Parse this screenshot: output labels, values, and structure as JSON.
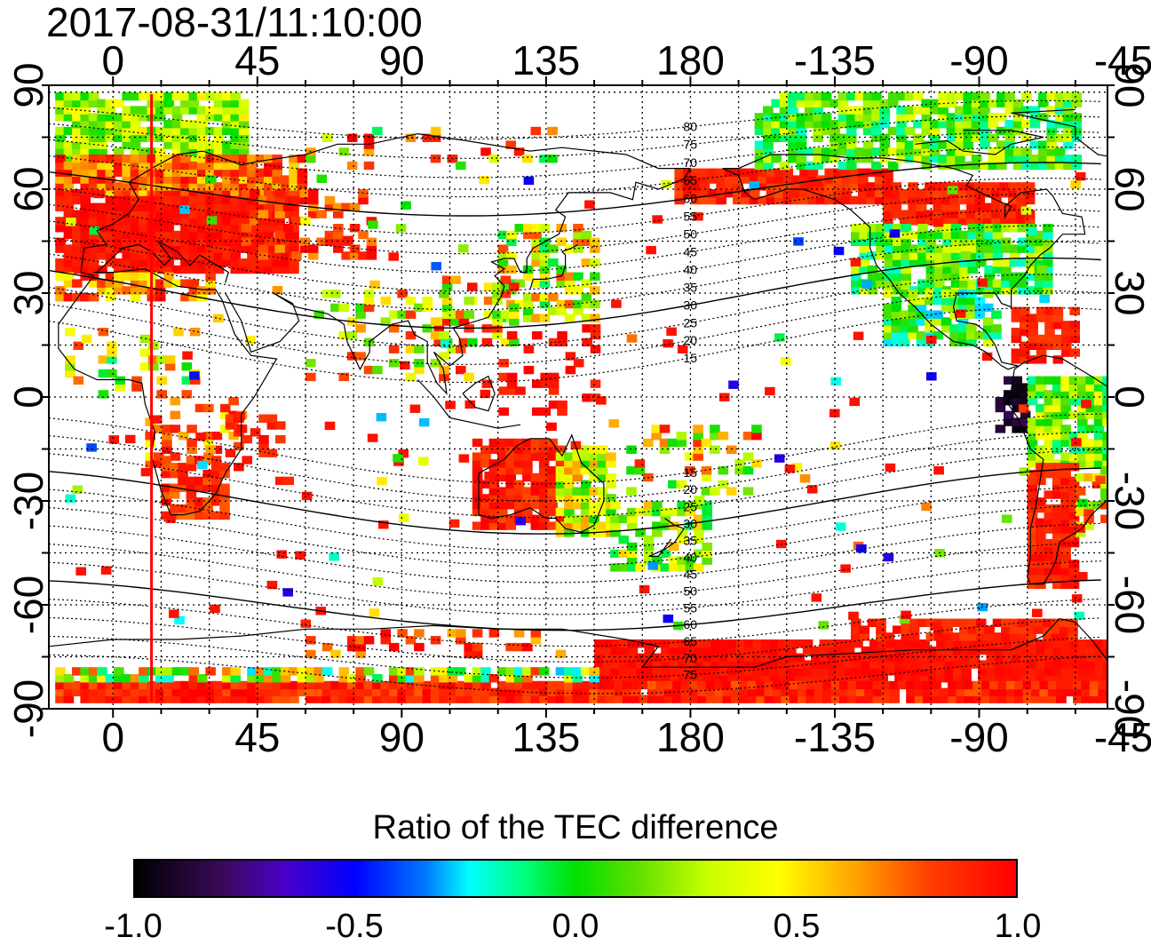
{
  "timestamp": "2017-08-31/11:10:00",
  "map": {
    "x_ticks": [
      "0",
      "45",
      "90",
      "135",
      "180",
      "-135",
      "-90",
      "-45"
    ],
    "y_ticks": [
      "90",
      "60",
      "30",
      "0",
      "-30",
      "-60",
      "-90"
    ],
    "lon_range": [
      -20,
      310
    ],
    "lat_range": [
      -90,
      90
    ],
    "marker_lon": 12,
    "marker_color": "#ff0000",
    "mlat_labels_north": [
      "80",
      "75",
      "70",
      "65",
      "60",
      "55",
      "50",
      "45",
      "40",
      "35",
      "30",
      "25",
      "20",
      "15"
    ],
    "mlat_labels_south": [
      "15",
      "20",
      "25",
      "30",
      "35",
      "40",
      "45",
      "50",
      "55",
      "60",
      "65",
      "70",
      "75"
    ]
  },
  "colorbar": {
    "title": "Ratio of the TEC difference",
    "ticks": [
      "-1.0",
      "-0.5",
      "0.0",
      "0.5",
      "1.0"
    ],
    "colors": [
      "#000000",
      "#0000ff",
      "#00ffff",
      "#00e000",
      "#ffff00",
      "#ff0000"
    ]
  }
}
